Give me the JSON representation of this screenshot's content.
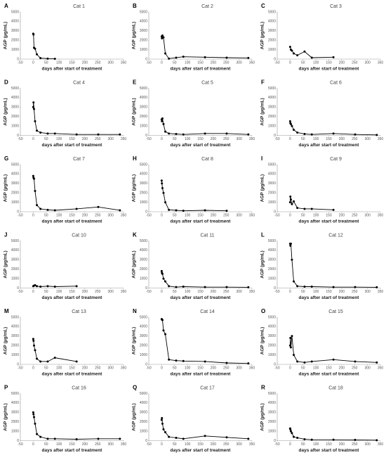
{
  "chart_data": [
    {
      "type": "line",
      "label": "A",
      "title": "Cat 1",
      "x_label": "days after start of treatment",
      "y_label": "AGP (µg/mL)",
      "x": [
        0,
        1,
        3,
        7,
        14,
        28,
        56,
        84
      ],
      "series": [
        {
          "color": "#000000",
          "values": [
            2700,
            2600,
            1200,
            1100,
            500,
            100,
            50,
            30
          ]
        }
      ],
      "xlim": [
        -50,
        350
      ],
      "ylim": [
        0,
        5000
      ],
      "xticks": [
        -50,
        0,
        50,
        100,
        150,
        200,
        250,
        300,
        350
      ],
      "yticks": [
        0,
        1000,
        2000,
        3000,
        4000,
        5000
      ]
    },
    {
      "type": "line",
      "label": "B",
      "title": "Cat 2",
      "x_label": "days after start of treatment",
      "y_label": "AGP (µg/mL)",
      "x": [
        0,
        1,
        3,
        7,
        14,
        28,
        56,
        84,
        168,
        252,
        336
      ],
      "series": [
        {
          "color": "#000000",
          "values": [
            2400,
            2200,
            2500,
            2300,
            600,
            50,
            150,
            250,
            200,
            150,
            120
          ]
        }
      ],
      "xlim": [
        -50,
        350
      ],
      "ylim": [
        0,
        5000
      ],
      "xticks": [
        -50,
        0,
        50,
        100,
        150,
        200,
        250,
        300,
        350
      ],
      "yticks": [
        0,
        1000,
        2000,
        3000,
        4000,
        5000
      ]
    },
    {
      "type": "line",
      "label": "C",
      "title": "Cat 3",
      "x_label": "days after start of treatment",
      "y_label": "AGP (µg/mL)",
      "x": [
        0,
        3,
        7,
        14,
        28,
        56,
        84,
        168
      ],
      "series": [
        {
          "color": "#000000",
          "values": [
            1300,
            1000,
            900,
            600,
            400,
            800,
            150,
            200
          ]
        }
      ],
      "xlim": [
        -50,
        350
      ],
      "ylim": [
        0,
        5000
      ],
      "xticks": [
        -50,
        0,
        50,
        100,
        150,
        200,
        250,
        300,
        350
      ],
      "yticks": [
        0,
        1000,
        2000,
        3000,
        4000,
        5000
      ]
    },
    {
      "type": "line",
      "label": "D",
      "title": "Cat 4",
      "x_label": "days after start of treatment",
      "y_label": "AGP (µg/mL)",
      "x": [
        0,
        1,
        3,
        7,
        14,
        28,
        56,
        84,
        168,
        252,
        336
      ],
      "series": [
        {
          "color": "#000000",
          "values": [
            3000,
            3500,
            2800,
            1500,
            500,
            300,
            200,
            200,
            100,
            100,
            100
          ]
        }
      ],
      "xlim": [
        -50,
        350
      ],
      "ylim": [
        0,
        5000
      ],
      "xticks": [
        -50,
        0,
        50,
        100,
        150,
        200,
        250,
        300,
        350
      ],
      "yticks": [
        0,
        1000,
        2000,
        3000,
        4000,
        5000
      ]
    },
    {
      "type": "line",
      "label": "E",
      "title": "Cat 5",
      "x_label": "days after start of treatment",
      "y_label": "AGP (µg/mL)",
      "x": [
        0,
        1,
        3,
        7,
        14,
        28,
        56,
        84,
        168,
        252,
        336
      ],
      "series": [
        {
          "color": "#000000",
          "values": [
            1700,
            1500,
            1800,
            1200,
            400,
            200,
            150,
            100,
            200,
            200,
            100
          ]
        }
      ],
      "xlim": [
        -50,
        350
      ],
      "ylim": [
        0,
        5000
      ],
      "xticks": [
        -50,
        0,
        50,
        100,
        150,
        200,
        250,
        300,
        350
      ],
      "yticks": [
        0,
        1000,
        2000,
        3000,
        4000,
        5000
      ]
    },
    {
      "type": "line",
      "label": "F",
      "title": "Cat 6",
      "x_label": "days after start of treatment",
      "y_label": "AGP (µg/mL)",
      "x": [
        0,
        1,
        3,
        7,
        14,
        28,
        56,
        84,
        168,
        252,
        336
      ],
      "series": [
        {
          "color": "#000000",
          "values": [
            1500,
            1300,
            1200,
            1000,
            600,
            300,
            150,
            100,
            200,
            100,
            50
          ]
        }
      ],
      "xlim": [
        -50,
        350
      ],
      "ylim": [
        0,
        5000
      ],
      "xticks": [
        -50,
        0,
        50,
        100,
        150,
        200,
        250,
        300,
        350
      ],
      "yticks": [
        0,
        1000,
        2000,
        3000,
        4000,
        5000
      ]
    },
    {
      "type": "line",
      "label": "G",
      "title": "Cat 7",
      "x_label": "days after start of treatment",
      "y_label": "AGP (µg/mL)",
      "x": [
        0,
        1,
        3,
        7,
        14,
        28,
        56,
        84,
        168,
        252,
        336
      ],
      "series": [
        {
          "color": "#000000",
          "values": [
            3800,
            3600,
            3500,
            2200,
            700,
            300,
            200,
            150,
            300,
            500,
            150
          ]
        }
      ],
      "xlim": [
        -50,
        350
      ],
      "ylim": [
        0,
        5000
      ],
      "xticks": [
        -50,
        0,
        50,
        100,
        150,
        200,
        250,
        300,
        350
      ],
      "yticks": [
        0,
        1000,
        2000,
        3000,
        4000,
        5000
      ]
    },
    {
      "type": "line",
      "label": "H",
      "title": "Cat 8",
      "x_label": "days after start of treatment",
      "y_label": "AGP (µg/mL)",
      "x": [
        0,
        1,
        3,
        7,
        14,
        28,
        56,
        84,
        168,
        252
      ],
      "series": [
        {
          "color": "#000000",
          "values": [
            3300,
            3000,
            2500,
            2000,
            1000,
            200,
            150,
            100,
            150,
            100
          ]
        }
      ],
      "xlim": [
        -50,
        350
      ],
      "ylim": [
        0,
        5000
      ],
      "xticks": [
        -50,
        0,
        50,
        100,
        150,
        200,
        250,
        300,
        350
      ],
      "yticks": [
        0,
        1000,
        2000,
        3000,
        4000,
        5000
      ]
    },
    {
      "type": "line",
      "label": "I",
      "title": "Cat 9",
      "x_label": "days after start of treatment",
      "y_label": "AGP (µg/mL)",
      "x": [
        0,
        1,
        3,
        7,
        14,
        28,
        56,
        84,
        168
      ],
      "series": [
        {
          "color": "#000000",
          "values": [
            1000,
            1600,
            1300,
            800,
            1100,
            400,
            300,
            300,
            200
          ]
        }
      ],
      "xlim": [
        -50,
        350
      ],
      "ylim": [
        0,
        5000
      ],
      "xticks": [
        -50,
        0,
        50,
        100,
        150,
        200,
        250,
        300,
        350
      ],
      "yticks": [
        0,
        1000,
        2000,
        3000,
        4000,
        5000
      ]
    },
    {
      "type": "line",
      "label": "J",
      "title": "Cat 10",
      "x_label": "days after start of treatment",
      "y_label": "AGP (µg/mL)",
      "x": [
        0,
        3,
        7,
        14,
        28,
        56,
        84,
        168
      ],
      "series": [
        {
          "color": "#000000",
          "values": [
            200,
            250,
            300,
            200,
            150,
            200,
            150,
            200
          ]
        }
      ],
      "xlim": [
        -50,
        350
      ],
      "ylim": [
        0,
        5000
      ],
      "xticks": [
        -50,
        0,
        50,
        100,
        150,
        200,
        250,
        300,
        350
      ],
      "yticks": [
        0,
        1000,
        2000,
        3000,
        4000,
        5000
      ]
    },
    {
      "type": "line",
      "label": "K",
      "title": "Cat 11",
      "x_label": "days after start of treatment",
      "y_label": "AGP (µg/mL)",
      "x": [
        0,
        1,
        3,
        7,
        14,
        28,
        56,
        84,
        168,
        252,
        336
      ],
      "series": [
        {
          "color": "#000000",
          "values": [
            1800,
            1600,
            1500,
            1000,
            700,
            200,
            100,
            150,
            100,
            100,
            80
          ]
        }
      ],
      "xlim": [
        -50,
        350
      ],
      "ylim": [
        0,
        5000
      ],
      "xticks": [
        -50,
        0,
        50,
        100,
        150,
        200,
        250,
        300,
        350
      ],
      "yticks": [
        0,
        1000,
        2000,
        3000,
        4000,
        5000
      ]
    },
    {
      "type": "line",
      "label": "L",
      "title": "Cat 12",
      "x_label": "days after start of treatment",
      "y_label": "AGP (µg/mL)",
      "x": [
        0,
        1,
        3,
        7,
        14,
        28,
        56,
        84,
        168,
        252,
        336
      ],
      "series": [
        {
          "color": "#000000",
          "values": [
            4700,
            4500,
            4700,
            3000,
            700,
            200,
            150,
            150,
            100,
            100,
            80
          ]
        }
      ],
      "xlim": [
        -50,
        350
      ],
      "ylim": [
        0,
        5000
      ],
      "xticks": [
        -50,
        0,
        50,
        100,
        150,
        200,
        250,
        300,
        350
      ],
      "yticks": [
        0,
        1000,
        2000,
        3000,
        4000,
        5000
      ]
    },
    {
      "type": "line",
      "label": "M",
      "title": "Cat 13",
      "x_label": "days after start of treatment",
      "y_label": "AGP (µg/mL)",
      "x": [
        0,
        1,
        3,
        7,
        14,
        28,
        56,
        84,
        168
      ],
      "series": [
        {
          "color": "#000000",
          "values": [
            2700,
            2500,
            2000,
            1500,
            600,
            300,
            300,
            700,
            300
          ]
        }
      ],
      "xlim": [
        -50,
        350
      ],
      "ylim": [
        0,
        5000
      ],
      "xticks": [
        -50,
        0,
        50,
        100,
        150,
        200,
        250,
        300,
        350
      ],
      "yticks": [
        0,
        1000,
        2000,
        3000,
        4000,
        5000
      ]
    },
    {
      "type": "line",
      "label": "N",
      "title": "Cat 14",
      "x_label": "days after start of treatment",
      "y_label": "AGP (µg/mL)",
      "x": [
        0,
        1,
        3,
        7,
        14,
        28,
        56,
        84,
        168,
        252,
        336
      ],
      "series": [
        {
          "color": "#000000",
          "values": [
            4800,
            4750,
            4700,
            3600,
            3200,
            500,
            400,
            350,
            300,
            150,
            100
          ]
        }
      ],
      "xlim": [
        -50,
        350
      ],
      "ylim": [
        0,
        5000
      ],
      "xticks": [
        -50,
        0,
        50,
        100,
        150,
        200,
        250,
        300,
        350
      ],
      "yticks": [
        0,
        1000,
        2000,
        3000,
        4000,
        5000
      ]
    },
    {
      "type": "line",
      "label": "O",
      "title": "Cat 15",
      "x_label": "days after start of treatment",
      "y_label": "AGP (µg/mL)",
      "x": [
        0,
        1,
        3,
        7,
        14,
        28,
        56,
        84,
        168,
        252,
        336
      ],
      "series": [
        {
          "color": "#000000",
          "values": [
            2000,
            2800,
            1800,
            3000,
            1000,
            300,
            200,
            300,
            500,
            300,
            200
          ]
        }
      ],
      "xlim": [
        -50,
        350
      ],
      "ylim": [
        0,
        5000
      ],
      "xticks": [
        -50,
        0,
        50,
        100,
        150,
        200,
        250,
        300,
        350
      ],
      "yticks": [
        0,
        1000,
        2000,
        3000,
        4000,
        5000
      ]
    },
    {
      "type": "line",
      "label": "P",
      "title": "Cat 16",
      "x_label": "days after start of treatment",
      "y_label": "AGP (µg/mL)",
      "x": [
        0,
        1,
        3,
        7,
        14,
        28,
        56,
        84,
        168,
        252,
        336
      ],
      "series": [
        {
          "color": "#000000",
          "values": [
            3000,
            2800,
            2500,
            1800,
            700,
            400,
            200,
            200,
            150,
            200,
            200
          ]
        }
      ],
      "xlim": [
        -50,
        350
      ],
      "ylim": [
        0,
        5000
      ],
      "xticks": [
        -50,
        0,
        50,
        100,
        150,
        200,
        250,
        300,
        350
      ],
      "yticks": [
        0,
        1000,
        2000,
        3000,
        4000,
        5000
      ]
    },
    {
      "type": "line",
      "label": "Q",
      "title": "Cat 17",
      "x_label": "days after start of treatment",
      "y_label": "AGP (µg/mL)",
      "x": [
        0,
        1,
        3,
        7,
        14,
        28,
        56,
        84,
        168,
        252,
        336
      ],
      "series": [
        {
          "color": "#000000",
          "values": [
            2200,
            2400,
            1800,
            1200,
            900,
            400,
            300,
            200,
            500,
            350,
            200
          ]
        }
      ],
      "xlim": [
        -50,
        350
      ],
      "ylim": [
        0,
        5000
      ],
      "xticks": [
        -50,
        0,
        50,
        100,
        150,
        200,
        250,
        300,
        350
      ],
      "yticks": [
        0,
        1000,
        2000,
        3000,
        4000,
        5000
      ]
    },
    {
      "type": "line",
      "label": "R",
      "title": "Cat 18",
      "x_label": "days after start of treatment",
      "y_label": "AGP (µg/mL)",
      "x": [
        0,
        1,
        3,
        7,
        14,
        28,
        56,
        84,
        168,
        252,
        336
      ],
      "series": [
        {
          "color": "#000000",
          "values": [
            1300,
            1200,
            1000,
            800,
            400,
            300,
            150,
            100,
            100,
            80,
            50
          ]
        }
      ],
      "xlim": [
        -50,
        350
      ],
      "ylim": [
        0,
        5000
      ],
      "xticks": [
        -50,
        0,
        50,
        100,
        150,
        200,
        250,
        300,
        350
      ],
      "yticks": [
        0,
        1000,
        2000,
        3000,
        4000,
        5000
      ]
    }
  ]
}
